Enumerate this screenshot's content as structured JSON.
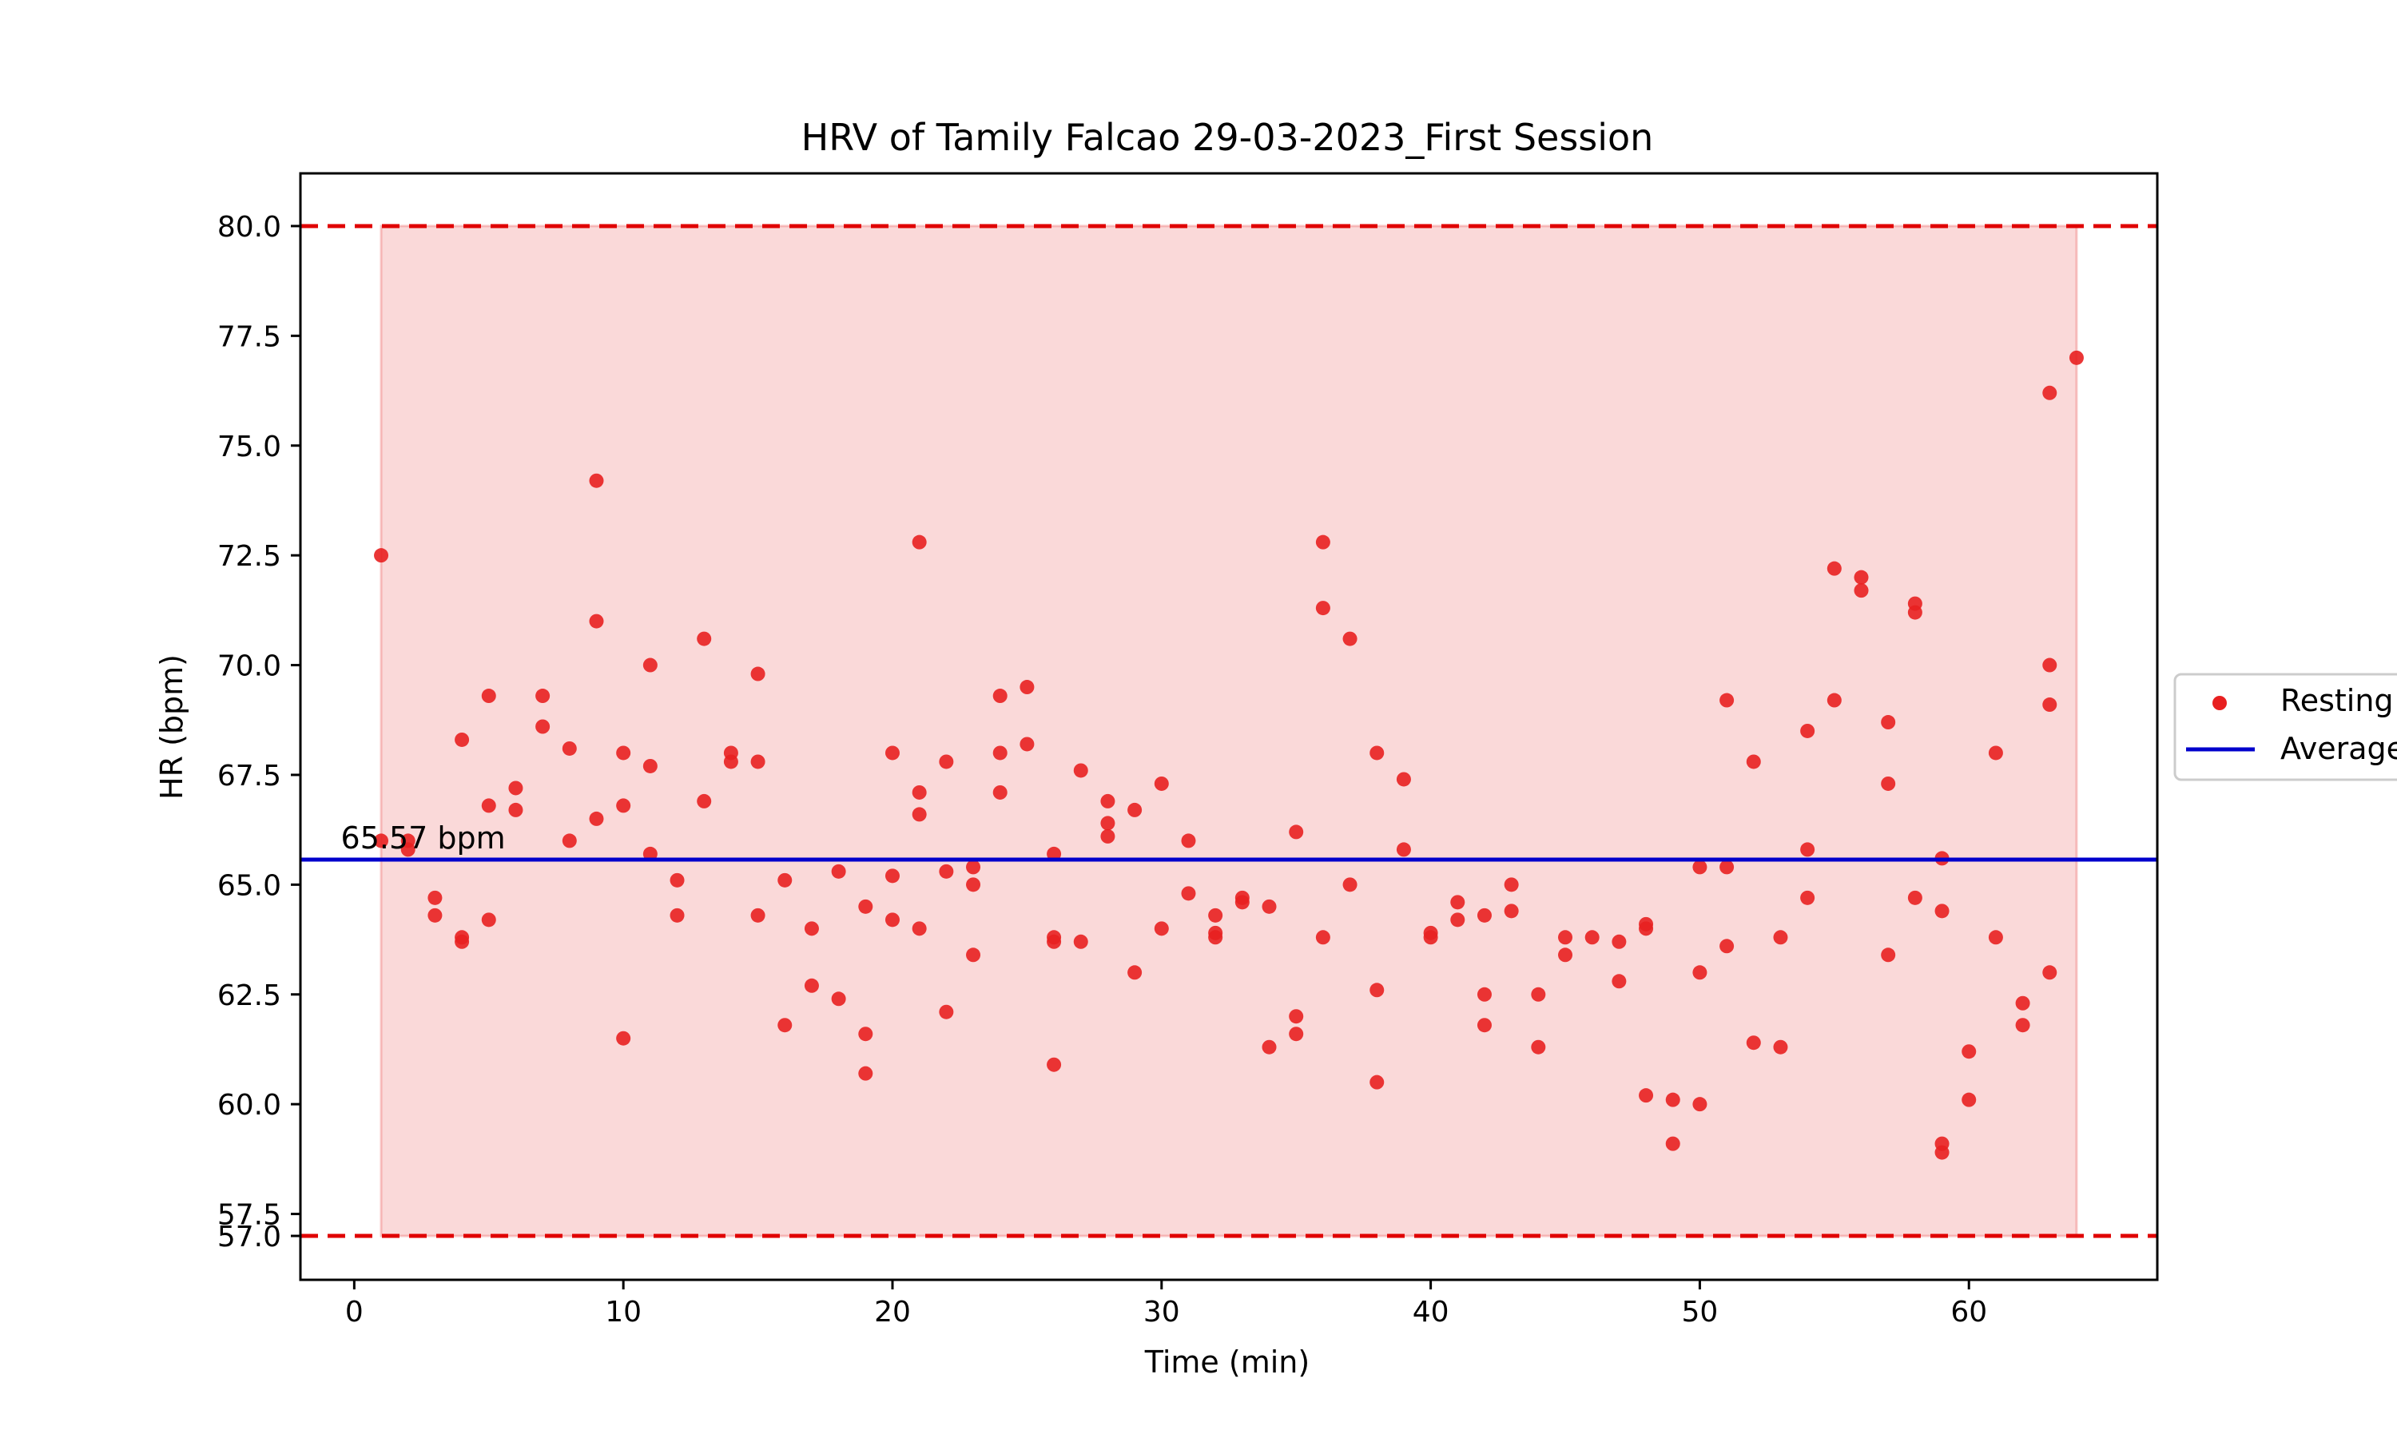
{
  "chart_data": {
    "type": "scatter",
    "title": "HRV of Tamily Falcao 29-03-2023_First Session",
    "xlabel": "Time (min)",
    "ylabel": "HR (bpm)",
    "xlim": [
      -2,
      67
    ],
    "ylim": [
      56,
      81.2
    ],
    "xticks": [
      0,
      10,
      20,
      30,
      40,
      50,
      60
    ],
    "yticks": [
      57.0,
      57.5,
      60.0,
      62.5,
      65.0,
      67.5,
      70.0,
      72.5,
      75.0,
      77.5,
      80.0
    ],
    "grid": false,
    "legend_position": "center-right",
    "average": {
      "value": 65.57,
      "label": "65.57 bpm",
      "color": "#0000cc"
    },
    "thresholds": {
      "upper": 80.0,
      "lower": 57.0,
      "color": "#e00000"
    },
    "shaded_band": {
      "x_start": 1,
      "x_end": 64,
      "y_start": 57.0,
      "y_end": 80.0,
      "color": "#f08080"
    },
    "series": [
      {
        "name": "Resting",
        "color": "#e82020",
        "points": [
          [
            1,
            72.5
          ],
          [
            1,
            66.0
          ],
          [
            2,
            66.0
          ],
          [
            2,
            65.8
          ],
          [
            3,
            64.7
          ],
          [
            3,
            64.3
          ],
          [
            4,
            68.3
          ],
          [
            4,
            63.8
          ],
          [
            4,
            63.7
          ],
          [
            5,
            69.3
          ],
          [
            5,
            66.8
          ],
          [
            5,
            64.2
          ],
          [
            6,
            67.2
          ],
          [
            6,
            66.7
          ],
          [
            7,
            69.3
          ],
          [
            7,
            68.6
          ],
          [
            8,
            68.1
          ],
          [
            8,
            66.0
          ],
          [
            9,
            74.2
          ],
          [
            9,
            71.0
          ],
          [
            9,
            66.5
          ],
          [
            10,
            68.0
          ],
          [
            10,
            66.8
          ],
          [
            10,
            61.5
          ],
          [
            11,
            70.0
          ],
          [
            11,
            67.7
          ],
          [
            11,
            65.7
          ],
          [
            12,
            65.1
          ],
          [
            12,
            64.3
          ],
          [
            13,
            70.6
          ],
          [
            13,
            66.9
          ],
          [
            14,
            68.0
          ],
          [
            14,
            67.8
          ],
          [
            15,
            69.8
          ],
          [
            15,
            67.8
          ],
          [
            15,
            64.3
          ],
          [
            16,
            65.1
          ],
          [
            16,
            61.8
          ],
          [
            17,
            64.0
          ],
          [
            17,
            62.7
          ],
          [
            18,
            65.3
          ],
          [
            18,
            62.4
          ],
          [
            19,
            64.5
          ],
          [
            19,
            61.6
          ],
          [
            19,
            60.7
          ],
          [
            20,
            68.0
          ],
          [
            20,
            65.2
          ],
          [
            20,
            64.2
          ],
          [
            21,
            72.8
          ],
          [
            21,
            67.1
          ],
          [
            21,
            66.6
          ],
          [
            21,
            64.0
          ],
          [
            22,
            67.8
          ],
          [
            22,
            65.3
          ],
          [
            22,
            62.1
          ],
          [
            23,
            65.4
          ],
          [
            23,
            65.0
          ],
          [
            23,
            63.4
          ],
          [
            24,
            69.3
          ],
          [
            24,
            68.0
          ],
          [
            24,
            67.1
          ],
          [
            25,
            69.5
          ],
          [
            25,
            68.2
          ],
          [
            26,
            65.7
          ],
          [
            26,
            63.8
          ],
          [
            26,
            63.7
          ],
          [
            26,
            60.9
          ],
          [
            27,
            67.6
          ],
          [
            27,
            63.7
          ],
          [
            28,
            66.9
          ],
          [
            28,
            66.4
          ],
          [
            28,
            66.1
          ],
          [
            29,
            66.7
          ],
          [
            29,
            63.0
          ],
          [
            30,
            67.3
          ],
          [
            30,
            64.0
          ],
          [
            31,
            66.0
          ],
          [
            31,
            64.8
          ],
          [
            32,
            64.3
          ],
          [
            32,
            63.9
          ],
          [
            32,
            63.8
          ],
          [
            33,
            64.7
          ],
          [
            33,
            64.6
          ],
          [
            34,
            64.5
          ],
          [
            34,
            61.3
          ],
          [
            35,
            66.2
          ],
          [
            35,
            62.0
          ],
          [
            35,
            61.6
          ],
          [
            36,
            72.8
          ],
          [
            36,
            71.3
          ],
          [
            36,
            63.8
          ],
          [
            37,
            70.6
          ],
          [
            37,
            65.0
          ],
          [
            38,
            68.0
          ],
          [
            38,
            62.6
          ],
          [
            38,
            60.5
          ],
          [
            39,
            67.4
          ],
          [
            39,
            65.8
          ],
          [
            40,
            63.9
          ],
          [
            40,
            63.8
          ],
          [
            41,
            64.6
          ],
          [
            41,
            64.2
          ],
          [
            42,
            64.3
          ],
          [
            42,
            62.5
          ],
          [
            42,
            61.8
          ],
          [
            43,
            65.0
          ],
          [
            43,
            64.4
          ],
          [
            44,
            62.5
          ],
          [
            44,
            61.3
          ],
          [
            45,
            63.8
          ],
          [
            45,
            63.4
          ],
          [
            46,
            63.8
          ],
          [
            47,
            63.7
          ],
          [
            47,
            62.8
          ],
          [
            48,
            64.1
          ],
          [
            48,
            64.0
          ],
          [
            48,
            60.2
          ],
          [
            49,
            60.1
          ],
          [
            49,
            59.1
          ],
          [
            50,
            65.4
          ],
          [
            50,
            63.0
          ],
          [
            50,
            60.0
          ],
          [
            51,
            69.2
          ],
          [
            51,
            65.4
          ],
          [
            51,
            63.6
          ],
          [
            52,
            67.8
          ],
          [
            52,
            61.4
          ],
          [
            53,
            63.8
          ],
          [
            53,
            61.3
          ],
          [
            54,
            68.5
          ],
          [
            54,
            65.8
          ],
          [
            54,
            64.7
          ],
          [
            55,
            72.2
          ],
          [
            55,
            69.2
          ],
          [
            56,
            72.0
          ],
          [
            56,
            71.7
          ],
          [
            57,
            68.7
          ],
          [
            57,
            67.3
          ],
          [
            57,
            63.4
          ],
          [
            58,
            71.4
          ],
          [
            58,
            71.2
          ],
          [
            58,
            64.7
          ],
          [
            59,
            65.6
          ],
          [
            59,
            64.4
          ],
          [
            59,
            59.1
          ],
          [
            59,
            58.9
          ],
          [
            60,
            61.2
          ],
          [
            60,
            60.1
          ],
          [
            61,
            68.0
          ],
          [
            61,
            63.8
          ],
          [
            62,
            62.3
          ],
          [
            62,
            61.8
          ],
          [
            63,
            76.2
          ],
          [
            63,
            70.0
          ],
          [
            63,
            69.1
          ],
          [
            63,
            63.0
          ],
          [
            64,
            77.0
          ]
        ]
      },
      {
        "name": "Average",
        "color": "#0000cc",
        "kind": "line"
      }
    ]
  }
}
